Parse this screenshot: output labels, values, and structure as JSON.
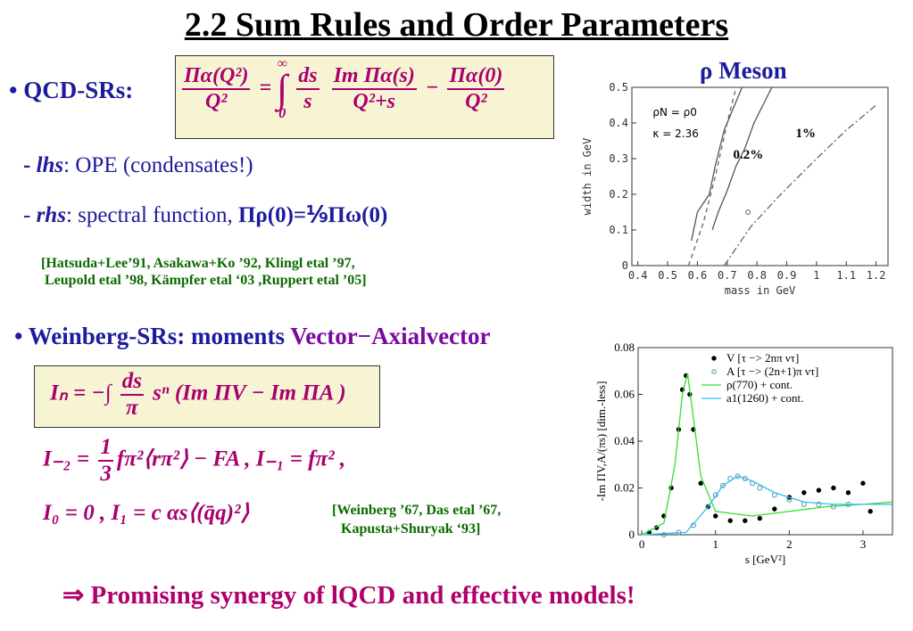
{
  "title": "2.2 Sum Rules and Order Parameters",
  "qcd": {
    "bullet": "• QCD-SRs:",
    "formula": {
      "lhs_num": "Πα(Q²)",
      "lhs_den": "Q²",
      "eq": "=",
      "int": "∫",
      "int_up": "∞",
      "int_lo": "0",
      "ds_num": "ds",
      "ds_den": "s",
      "im_num": "Im Πα(s)",
      "im_den": "Q²+s",
      "minus": "−",
      "r_num": "Πα(0)",
      "r_den": "Q²"
    },
    "lhs": {
      "dash": "- ",
      "key": "lhs",
      "text": ": OPE (condensates!)"
    },
    "rhs": {
      "dash": "- ",
      "key": "rhs",
      "text": ": spectral function, ",
      "relation": "Πρ(0)=⅑Πω(0)"
    },
    "reference": [
      "[Hatsuda+Lee’91, Asakawa+Ko ’92, Klingl etal ’97,",
      "Leupold etal ’98, Kämpfer etal ‘03 ,Ruppert etal ’05]"
    ]
  },
  "weinberg": {
    "bullet": "• Weinberg-SRs: moments ",
    "highlight": "Vector−Axialvector",
    "formula": {
      "lhs": "Iₙ = −∫",
      "num": "ds",
      "den": "π",
      "rest": " sⁿ (Im ΠV − Im ΠA )"
    },
    "line1": {
      "lhs": "I₋₂ = ",
      "num": "1",
      "den": "3",
      "rest": "fπ²⟨rπ²⟩ − FA ,   I₋₁ = fπ² ,"
    },
    "line2": "I₀ = 0 ,   I₁ = c αs⟨(q̄q)²⟩",
    "reference": [
      "[Weinberg ’67, Das etal ’67,",
      "Kapusta+Shuryak ‘93]"
    ]
  },
  "conclusion": "⇒ Promising synergy of lQCD and effective models!",
  "chart_data": [
    {
      "type": "line",
      "title": "ρ Meson",
      "x_label": "mass in GeV",
      "y_label": "width in GeV",
      "xlim": [
        0.38,
        1.24
      ],
      "ylim": [
        0,
        0.5
      ],
      "xticks": [
        0.4,
        0.5,
        0.6,
        0.7,
        0.8,
        0.9,
        1,
        1.1,
        1.2
      ],
      "yticks": [
        0,
        0.1,
        0.2,
        0.3,
        0.4,
        0.5
      ],
      "annotations": [
        "ρN = ρ0",
        "κ = 2.36",
        "0.2%",
        "1%"
      ],
      "series": [
        {
          "color": "#666",
          "dash": "dashed",
          "x": [
            0.57,
            0.62,
            0.66,
            0.7,
            0.73
          ],
          "y": [
            0,
            0.12,
            0.25,
            0.4,
            0.5
          ]
        },
        {
          "color": "#555",
          "dash": "solid",
          "x": [
            0.58,
            0.6,
            0.64,
            0.66,
            0.69,
            0.72,
            0.75
          ],
          "y": [
            0.07,
            0.15,
            0.2,
            0.28,
            0.38,
            0.44,
            0.5
          ]
        },
        {
          "color": "#555",
          "dash": "solid",
          "x": [
            0.65,
            0.67,
            0.7,
            0.73,
            0.76,
            0.79,
            0.82,
            0.85
          ],
          "y": [
            0.1,
            0.15,
            0.21,
            0.28,
            0.33,
            0.4,
            0.45,
            0.5
          ]
        },
        {
          "color": "#666",
          "dash": "dashdot",
          "x": [
            0.69,
            0.78,
            0.88,
            1.0,
            1.1,
            1.2
          ],
          "y": [
            0,
            0.11,
            0.2,
            0.3,
            0.38,
            0.45
          ]
        },
        {
          "color": "#666",
          "marker": "circle",
          "x": [
            0.77
          ],
          "y": [
            0.15
          ]
        }
      ]
    },
    {
      "type": "line",
      "x_label": "s [GeV²]",
      "y_label": "-Im ΠV,A/(πs) [dim.-less]",
      "xlim": [
        -0.05,
        3.4
      ],
      "ylim": [
        0,
        0.08
      ],
      "xticks": [
        0,
        1,
        2,
        3
      ],
      "yticks": [
        0,
        0.02,
        0.04,
        0.06,
        0.08
      ],
      "series": [
        {
          "name": "V [τ −> 2nπ ντ]",
          "color": "#000",
          "marker": "dot",
          "x": [
            0.1,
            0.2,
            0.3,
            0.4,
            0.5,
            0.55,
            0.6,
            0.65,
            0.7,
            0.8,
            0.9,
            1.0,
            1.2,
            1.4,
            1.6,
            1.8,
            2.0,
            2.2,
            2.4,
            2.6,
            2.8,
            3.0,
            3.1
          ],
          "y": [
            0.001,
            0.003,
            0.008,
            0.02,
            0.045,
            0.062,
            0.068,
            0.06,
            0.045,
            0.022,
            0.012,
            0.008,
            0.006,
            0.006,
            0.007,
            0.011,
            0.016,
            0.018,
            0.019,
            0.02,
            0.018,
            0.022,
            0.01
          ]
        },
        {
          "name": "A [τ −> (2n+1)π ντ]",
          "color": "#4a8fb0",
          "marker": "circle",
          "x": [
            0.3,
            0.5,
            0.7,
            0.9,
            1.0,
            1.1,
            1.2,
            1.3,
            1.4,
            1.5,
            1.6,
            1.8,
            2.0,
            2.2,
            2.4,
            2.6,
            2.8
          ],
          "y": [
            0,
            0.001,
            0.004,
            0.012,
            0.017,
            0.021,
            0.024,
            0.025,
            0.024,
            0.022,
            0.02,
            0.017,
            0.015,
            0.013,
            0.013,
            0.012,
            0.013
          ]
        },
        {
          "name": "ρ(770)  + cont.",
          "color": "#33dd33",
          "x": [
            0,
            0.3,
            0.45,
            0.55,
            0.62,
            0.7,
            0.8,
            1.0,
            1.5,
            2.0,
            2.5,
            3.0,
            3.4
          ],
          "y": [
            0,
            0.005,
            0.03,
            0.06,
            0.069,
            0.05,
            0.025,
            0.01,
            0.008,
            0.01,
            0.012,
            0.013,
            0.014
          ]
        },
        {
          "name": "a1(1260) + cont.",
          "color": "#33bbee",
          "x": [
            0,
            0.6,
            0.9,
            1.1,
            1.3,
            1.5,
            1.8,
            2.2,
            2.6,
            3.0,
            3.4
          ],
          "y": [
            0,
            0.001,
            0.012,
            0.021,
            0.025,
            0.023,
            0.018,
            0.014,
            0.013,
            0.013,
            0.013
          ]
        }
      ]
    }
  ]
}
